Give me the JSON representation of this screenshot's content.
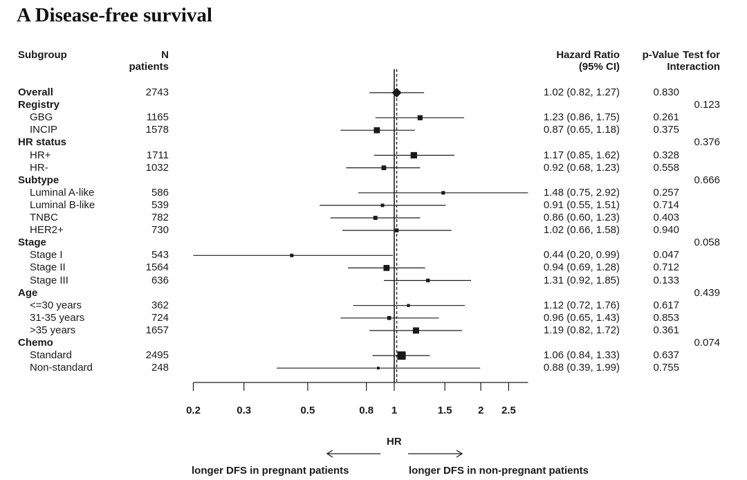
{
  "chart_data": {
    "type": "forest",
    "title": "A Disease-free survival",
    "headers": {
      "subgroup": "Subgroup",
      "n_line1": "N",
      "n_line2": "patients",
      "hr_line1": "Hazard Ratio",
      "hr_line2": "(95% CI)",
      "p": "p-Value",
      "interaction_line1": "Test for",
      "interaction_line2": "Interaction"
    },
    "rows": [
      {
        "label": "Overall",
        "type": "overall",
        "n": "2743",
        "hr": 1.02,
        "lo": 0.82,
        "hi": 1.27,
        "hr_text": "1.02 (0.82, 1.27)",
        "p": "0.830",
        "size": 1
      },
      {
        "label": "Registry",
        "type": "group",
        "interaction": "0.123"
      },
      {
        "label": "GBG",
        "type": "sub",
        "n": "1165",
        "hr": 1.23,
        "lo": 0.86,
        "hi": 1.75,
        "hr_text": "1.23 (0.86, 1.75)",
        "p": "0.261",
        "size": 1165
      },
      {
        "label": "INCIP",
        "type": "sub",
        "n": "1578",
        "hr": 0.87,
        "lo": 0.65,
        "hi": 1.18,
        "hr_text": "0.87 (0.65, 1.18)",
        "p": "0.375",
        "size": 1578
      },
      {
        "label": "HR status",
        "type": "group",
        "interaction": "0.376"
      },
      {
        "label": "HR+",
        "type": "sub",
        "n": "1711",
        "hr": 1.17,
        "lo": 0.85,
        "hi": 1.62,
        "hr_text": "1.17 (0.85, 1.62)",
        "p": "0.328",
        "size": 1711
      },
      {
        "label": "HR-",
        "type": "sub",
        "n": "1032",
        "hr": 0.92,
        "lo": 0.68,
        "hi": 1.23,
        "hr_text": "0.92 (0.68, 1.23)",
        "p": "0.558",
        "size": 1032
      },
      {
        "label": "Subtype",
        "type": "group",
        "interaction": "0.666"
      },
      {
        "label": "Luminal A-like",
        "type": "sub",
        "n": "586",
        "hr": 1.48,
        "lo": 0.75,
        "hi": 2.92,
        "hr_text": "1.48 (0.75, 2.92)",
        "p": "0.257",
        "size": 586
      },
      {
        "label": "Luminal B-like",
        "type": "sub",
        "n": "539",
        "hr": 0.91,
        "lo": 0.55,
        "hi": 1.51,
        "hr_text": "0.91 (0.55, 1.51)",
        "p": "0.714",
        "size": 539
      },
      {
        "label": "TNBC",
        "type": "sub",
        "n": "782",
        "hr": 0.86,
        "lo": 0.6,
        "hi": 1.23,
        "hr_text": "0.86 (0.60, 1.23)",
        "p": "0.403",
        "size": 782
      },
      {
        "label": "HER2+",
        "type": "sub",
        "n": "730",
        "hr": 1.02,
        "lo": 0.66,
        "hi": 1.58,
        "hr_text": "1.02 (0.66, 1.58)",
        "p": "0.940",
        "size": 730
      },
      {
        "label": "Stage",
        "type": "group",
        "interaction": "0.058"
      },
      {
        "label": "Stage I",
        "type": "sub",
        "n": "543",
        "hr": 0.44,
        "lo": 0.2,
        "hi": 0.99,
        "hr_text": "0.44 (0.20, 0.99)",
        "p": "0.047",
        "size": 543
      },
      {
        "label": "Stage II",
        "type": "sub",
        "n": "1564",
        "hr": 0.94,
        "lo": 0.69,
        "hi": 1.28,
        "hr_text": "0.94 (0.69, 1.28)",
        "p": "0.712",
        "size": 1564
      },
      {
        "label": "Stage III",
        "type": "sub",
        "n": "636",
        "hr": 1.31,
        "lo": 0.92,
        "hi": 1.85,
        "hr_text": "1.31 (0.92, 1.85)",
        "p": "0.133",
        "size": 636
      },
      {
        "label": "Age",
        "type": "group",
        "interaction": "0.439"
      },
      {
        "label": "<=30 years",
        "type": "sub",
        "n": "362",
        "hr": 1.12,
        "lo": 0.72,
        "hi": 1.76,
        "hr_text": "1.12 (0.72, 1.76)",
        "p": "0.617",
        "size": 362
      },
      {
        "label": "31-35 years",
        "type": "sub",
        "n": "724",
        "hr": 0.96,
        "lo": 0.65,
        "hi": 1.43,
        "hr_text": "0.96 (0.65, 1.43)",
        "p": "0.853",
        "size": 724
      },
      {
        "label": ">35 years",
        "type": "sub",
        "n": "1657",
        "hr": 1.19,
        "lo": 0.82,
        "hi": 1.72,
        "hr_text": "1.19 (0.82, 1.72)",
        "p": "0.361",
        "size": 1657
      },
      {
        "label": "Chemo",
        "type": "group",
        "interaction": "0.074"
      },
      {
        "label": "Standard",
        "type": "sub",
        "n": "2495",
        "hr": 1.06,
        "lo": 0.84,
        "hi": 1.33,
        "hr_text": "1.06 (0.84, 1.33)",
        "p": "0.637",
        "size": 2495
      },
      {
        "label": "Non-standard",
        "type": "sub",
        "n": "248",
        "hr": 0.88,
        "lo": 0.39,
        "hi": 1.99,
        "hr_text": "0.88 (0.39, 1.99)",
        "p": "0.755",
        "size": 248
      }
    ],
    "x_axis": {
      "scale": "log",
      "label": "HR",
      "ticks": [
        0.2,
        0.3,
        0.5,
        0.8,
        1,
        1.5,
        2,
        2.5
      ],
      "tick_labels": [
        "0.2",
        "0.3",
        "0.5",
        "0.8",
        "1",
        "1.5",
        "2",
        "2.5"
      ],
      "xlim": [
        0.19,
        3.2
      ]
    },
    "reference_line": 1,
    "overall_line": 1.02,
    "arrow_left_label": "longer DFS in pregnant patients",
    "arrow_right_label": "longer DFS in non-pregnant patients",
    "colors": {
      "ink": "#1a1a1a"
    }
  }
}
